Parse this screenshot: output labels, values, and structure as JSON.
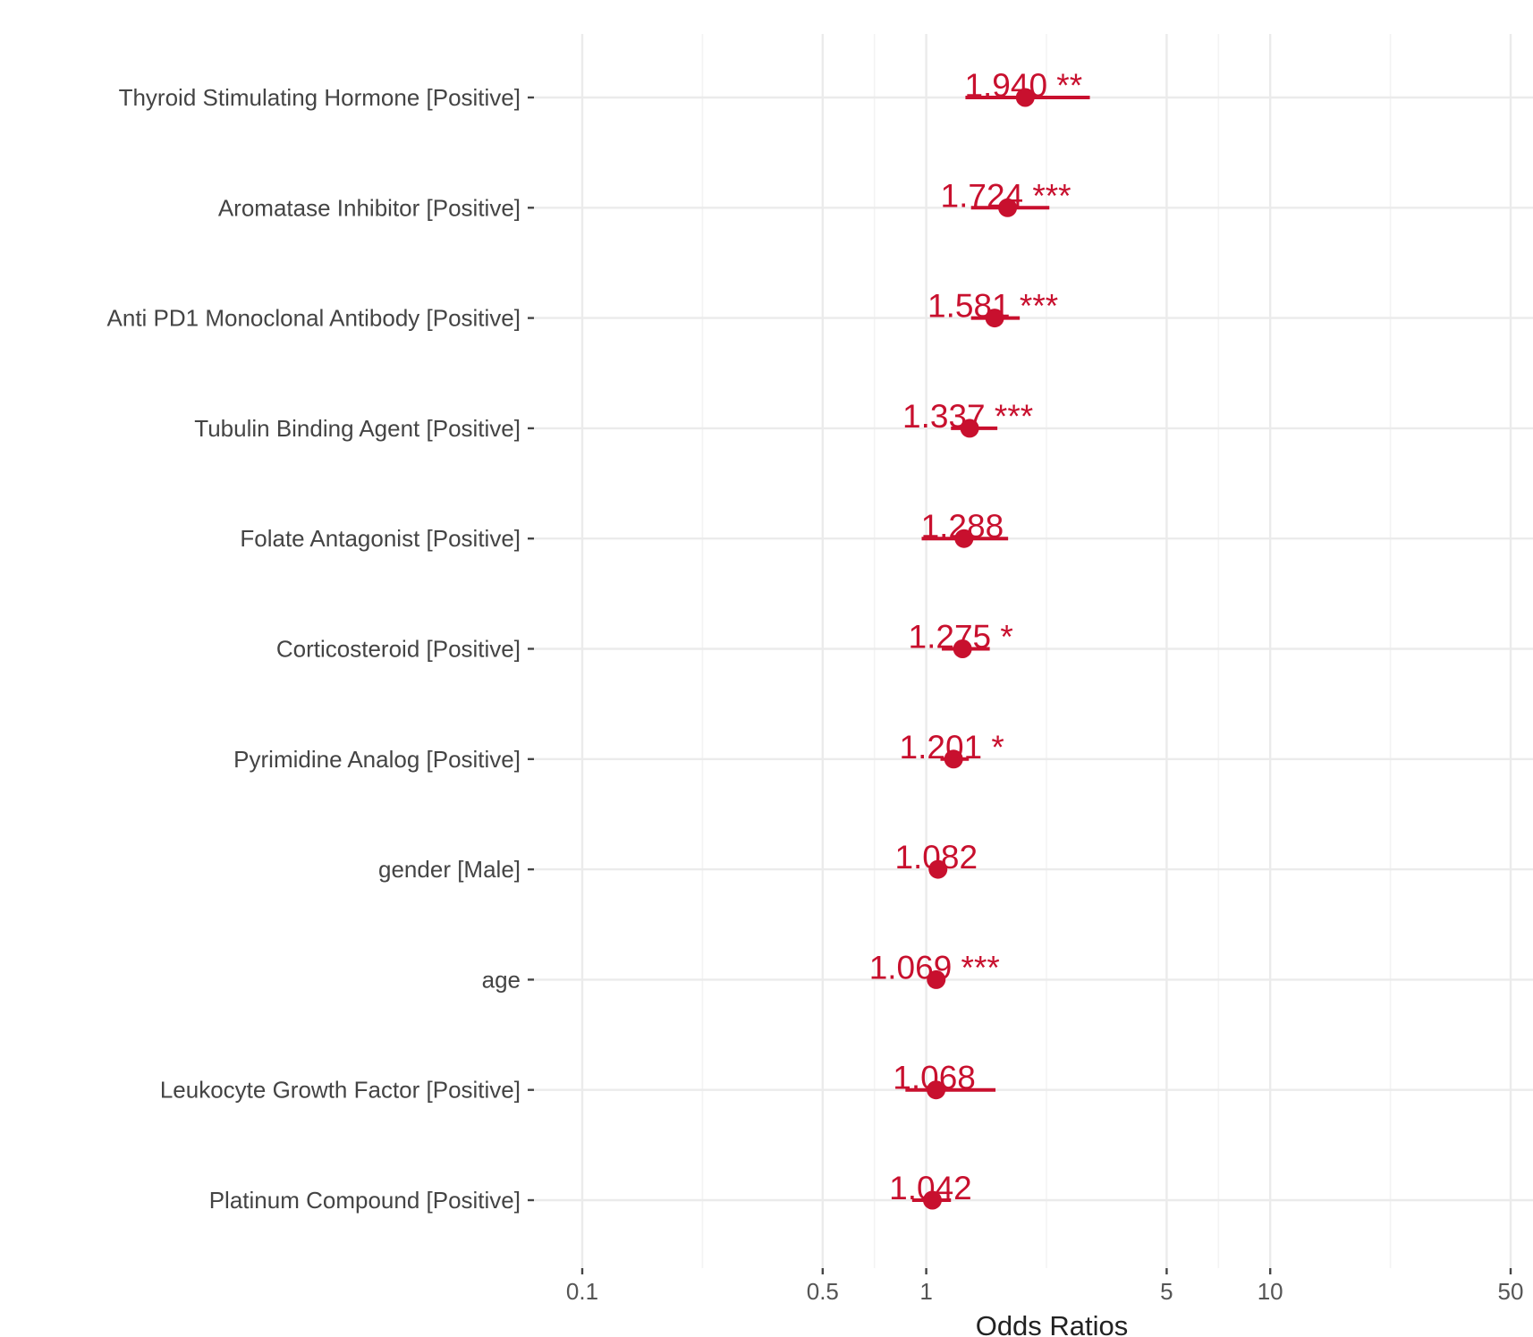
{
  "chart_data": {
    "type": "scatter",
    "subtype": "forest-plot",
    "title": "",
    "xlabel": "Odds Ratios",
    "ylabel": "",
    "x_scale": "log",
    "xlim": [
      0.1,
      50
    ],
    "x_ticks": [
      {
        "value": 0.1,
        "label": "0.1"
      },
      {
        "value": 0.5,
        "label": "0.5"
      },
      {
        "value": 1,
        "label": "1"
      },
      {
        "value": 5,
        "label": "5"
      },
      {
        "value": 10,
        "label": "10"
      },
      {
        "value": 50,
        "label": "50"
      }
    ],
    "grid": true,
    "legend": "none",
    "color": "#c8102e",
    "categories": [
      "Thyroid Stimulating Hormone [Positive]",
      "Aromatase Inhibitor [Positive]",
      "Anti PD1 Monoclonal Antibody [Positive]",
      "Tubulin Binding Agent [Positive]",
      "Folate Antagonist [Positive]",
      "Corticosteroid [Positive]",
      "Pyrimidine Analog [Positive]",
      "gender [Male]",
      "age",
      "Leukocyte Growth Factor [Positive]",
      "Platinum Compound [Positive]"
    ],
    "values": [
      1.94,
      1.724,
      1.581,
      1.337,
      1.288,
      1.275,
      1.201,
      1.082,
      1.069,
      1.068,
      1.042
    ],
    "ci_low": [
      1.3,
      1.35,
      1.35,
      1.18,
      0.97,
      1.11,
      1.1,
      1.03,
      1.06,
      0.87,
      0.91
    ],
    "ci_high": [
      2.99,
      2.28,
      1.87,
      1.61,
      1.73,
      1.53,
      1.33,
      1.13,
      1.08,
      1.59,
      1.18
    ],
    "labels": [
      "1.940 **",
      "1.724 ***",
      "1.581 ***",
      "1.337 ***",
      "1.288",
      "1.275 *",
      "1.201 *",
      "1.082",
      "1.069 ***",
      "1.068",
      "1.042"
    ]
  }
}
